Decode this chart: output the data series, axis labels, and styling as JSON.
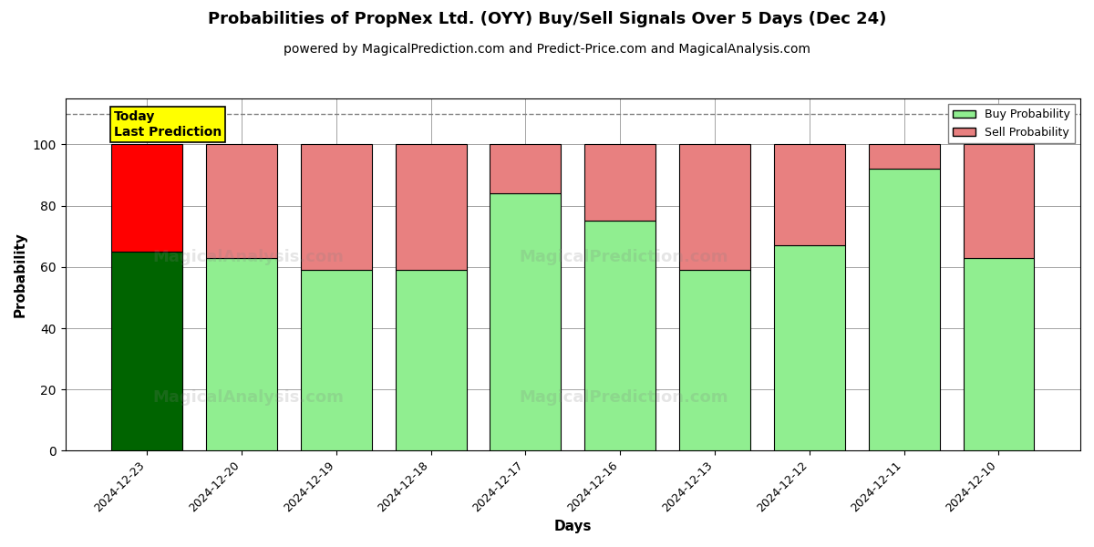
{
  "title": "Probabilities of PropNex Ltd. (OYY) Buy/Sell Signals Over 5 Days (Dec 24)",
  "subtitle": "powered by MagicalPrediction.com and Predict-Price.com and MagicalAnalysis.com",
  "xlabel": "Days",
  "ylabel": "Probability",
  "categories": [
    "2024-12-23",
    "2024-12-20",
    "2024-12-19",
    "2024-12-18",
    "2024-12-17",
    "2024-12-16",
    "2024-12-13",
    "2024-12-12",
    "2024-12-11",
    "2024-12-10"
  ],
  "buy_values": [
    65,
    63,
    59,
    59,
    84,
    75,
    59,
    67,
    92,
    63
  ],
  "sell_values": [
    35,
    37,
    41,
    41,
    16,
    25,
    41,
    33,
    8,
    37
  ],
  "today_index": 0,
  "today_buy_color": "#006400",
  "today_sell_color": "#ff0000",
  "buy_color": "#90EE90",
  "sell_color": "#E88080",
  "legend_buy_color": "#90EE90",
  "legend_sell_color": "#E88080",
  "today_label_bg": "#ffff00",
  "today_label_text": "Today\nLast Prediction",
  "ylim": [
    0,
    115
  ],
  "yticks": [
    0,
    20,
    40,
    60,
    80,
    100
  ],
  "dashed_line_y": 110,
  "background_color": "#ffffff",
  "title_fontsize": 13,
  "subtitle_fontsize": 10,
  "bar_width": 0.75
}
